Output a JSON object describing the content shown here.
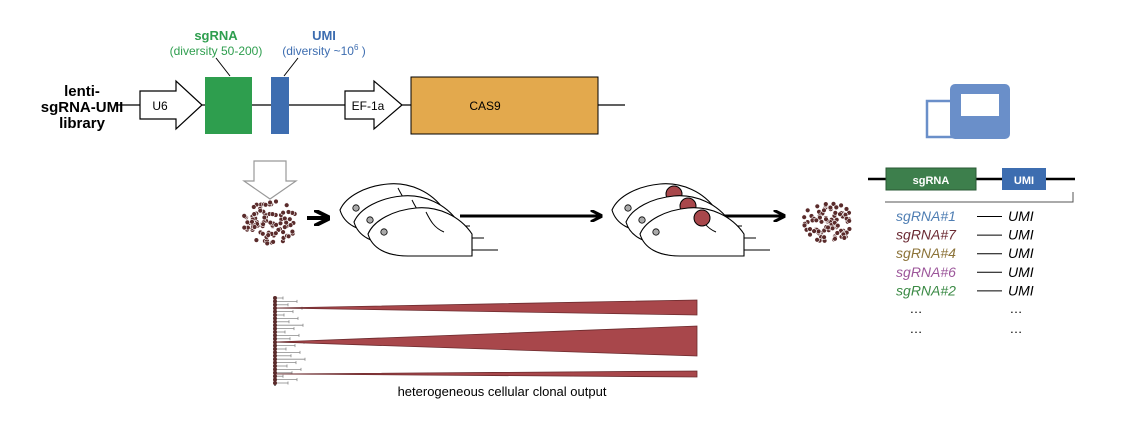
{
  "construct": {
    "library_label": [
      "lenti-",
      "sgRNA-UMI",
      "library"
    ],
    "u6_label": "U6",
    "sgrna_title": "sgRNA",
    "sgrna_subtitle": "(diversity 50-200)",
    "umi_title": "UMI",
    "umi_subtitle": "(diversity ~10",
    "umi_superscript": "6",
    "umi_subtitle_end": " )",
    "ef1a_label": "EF-1a",
    "cas9_label": "CAS9"
  },
  "sequencing": {
    "read_sgrna_label": "sgRNA",
    "read_umi_label": "UMI",
    "rows": [
      {
        "sgrna": "sgRNA#1",
        "umi": "UMI",
        "color": "#4f7eb3"
      },
      {
        "sgrna": "sgRNA#7",
        "umi": "UMI",
        "color": "#6b2a33"
      },
      {
        "sgrna": "sgRNA#4",
        "umi": "UMI",
        "color": "#8c7338"
      },
      {
        "sgrna": "sgRNA#6",
        "umi": "UMI",
        "color": "#9c569a"
      },
      {
        "sgrna": "sgRNA#2",
        "umi": "UMI",
        "color": "#3b8a45"
      }
    ],
    "ellipsis": "…"
  },
  "clonal": {
    "caption": "heterogeneous cellular clonal output"
  },
  "colors": {
    "sgrna_green": "#2e9e4e",
    "umi_blue": "#3d6db0",
    "cas9_orange": "#e3a94d",
    "tumor_red": "#a8474b",
    "cell_brown": "#5a2b2b",
    "computer_blue": "#6a8fc9",
    "read_green": "#3d7f4c"
  }
}
